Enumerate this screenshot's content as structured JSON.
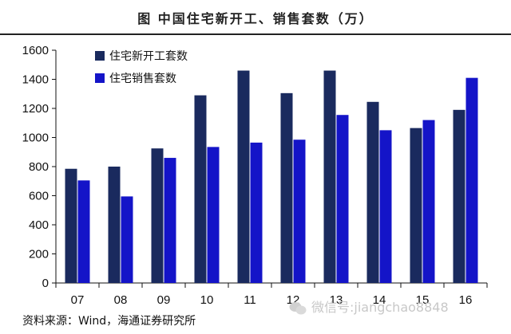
{
  "title": "图    中国住宅新开工、销售套数（万）",
  "source": "资料来源：Wind，海通证券研究所",
  "watermark": "微信号:jiangchao8848",
  "colors": {
    "series_new_starts": "#1a2a5e",
    "series_sales": "#1414c8",
    "axis": "#111111",
    "title_rule": "#222222"
  },
  "chart_data": {
    "type": "bar",
    "title": "",
    "xlabel": "",
    "ylabel": "",
    "categories": [
      "07",
      "08",
      "09",
      "10",
      "11",
      "12",
      "13",
      "14",
      "15",
      "16"
    ],
    "ylim": [
      0,
      1600
    ],
    "yticks": [
      0,
      200,
      400,
      600,
      800,
      1000,
      1200,
      1400,
      1600
    ],
    "grid": false,
    "legend_position": "top-left",
    "series": [
      {
        "name": "住宅新开工套数",
        "color": "#1a2a5e",
        "values": [
          785,
          800,
          925,
          1290,
          1460,
          1305,
          1460,
          1245,
          1065,
          1190
        ]
      },
      {
        "name": "住宅销售套数",
        "color": "#1414c8",
        "values": [
          705,
          595,
          860,
          935,
          965,
          985,
          1155,
          1050,
          1120,
          1410
        ]
      }
    ]
  }
}
